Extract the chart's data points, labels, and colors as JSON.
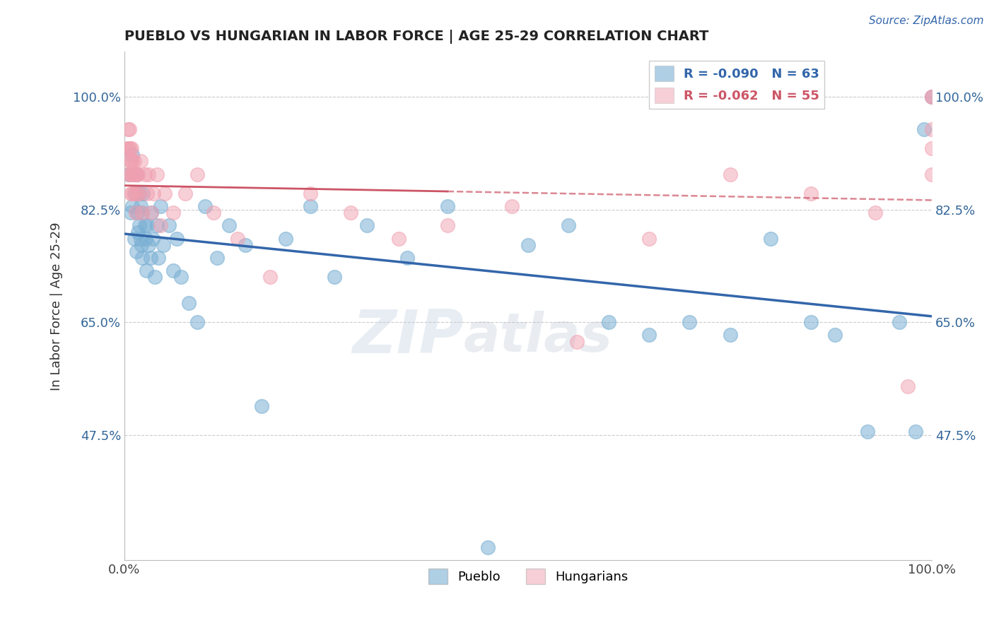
{
  "title": "PUEBLO VS HUNGARIAN IN LABOR FORCE | AGE 25-29 CORRELATION CHART",
  "source_text": "Source: ZipAtlas.com",
  "ylabel": "In Labor Force | Age 25-29",
  "xlim": [
    0.0,
    1.0
  ],
  "ylim": [
    0.28,
    1.07
  ],
  "yticks": [
    0.475,
    0.65,
    0.825,
    1.0
  ],
  "ytick_labels": [
    "47.5%",
    "65.0%",
    "82.5%",
    "100.0%"
  ],
  "xtick_labels": [
    "0.0%",
    "100.0%"
  ],
  "xticks": [
    0.0,
    1.0
  ],
  "blue_R": -0.09,
  "blue_N": 63,
  "pink_R": -0.062,
  "pink_N": 55,
  "blue_color": "#7ab0d4",
  "pink_color": "#f0a0b0",
  "blue_line_color": "#3366aa",
  "pink_line_color": "#cc5566",
  "watermark_zip": "ZIP",
  "watermark_atlas": "atlas",
  "pueblo_x": [
    0.005,
    0.008,
    0.01,
    0.01,
    0.012,
    0.013,
    0.015,
    0.015,
    0.016,
    0.017,
    0.018,
    0.018,
    0.02,
    0.02,
    0.021,
    0.022,
    0.022,
    0.023,
    0.025,
    0.026,
    0.027,
    0.028,
    0.03,
    0.032,
    0.033,
    0.035,
    0.038,
    0.04,
    0.042,
    0.045,
    0.048,
    0.055,
    0.06,
    0.065,
    0.07,
    0.08,
    0.09,
    0.1,
    0.115,
    0.13,
    0.15,
    0.17,
    0.2,
    0.23,
    0.26,
    0.3,
    0.35,
    0.4,
    0.45,
    0.5,
    0.55,
    0.6,
    0.65,
    0.7,
    0.75,
    0.8,
    0.85,
    0.88,
    0.92,
    0.96,
    0.98,
    0.99,
    1.0
  ],
  "pueblo_y": [
    0.88,
    0.82,
    0.91,
    0.83,
    0.78,
    0.85,
    0.76,
    0.88,
    0.82,
    0.79,
    0.85,
    0.8,
    0.78,
    0.83,
    0.77,
    0.82,
    0.75,
    0.85,
    0.8,
    0.78,
    0.73,
    0.8,
    0.77,
    0.75,
    0.82,
    0.78,
    0.72,
    0.8,
    0.75,
    0.83,
    0.77,
    0.8,
    0.73,
    0.78,
    0.72,
    0.68,
    0.65,
    0.83,
    0.75,
    0.8,
    0.77,
    0.52,
    0.78,
    0.83,
    0.72,
    0.8,
    0.75,
    0.83,
    0.3,
    0.77,
    0.8,
    0.65,
    0.63,
    0.65,
    0.63,
    0.78,
    0.65,
    0.63,
    0.48,
    0.65,
    0.48,
    0.95,
    1.0
  ],
  "hungarian_x": [
    0.003,
    0.004,
    0.005,
    0.005,
    0.006,
    0.006,
    0.007,
    0.007,
    0.008,
    0.008,
    0.009,
    0.009,
    0.01,
    0.01,
    0.011,
    0.012,
    0.012,
    0.013,
    0.014,
    0.015,
    0.016,
    0.017,
    0.018,
    0.02,
    0.022,
    0.025,
    0.028,
    0.03,
    0.033,
    0.036,
    0.04,
    0.045,
    0.05,
    0.06,
    0.075,
    0.09,
    0.11,
    0.14,
    0.18,
    0.23,
    0.28,
    0.34,
    0.4,
    0.48,
    0.56,
    0.65,
    0.75,
    0.85,
    0.93,
    0.97,
    1.0,
    1.0,
    1.0,
    1.0,
    1.0
  ],
  "hungarian_y": [
    0.92,
    0.95,
    0.88,
    0.92,
    0.9,
    0.95,
    0.88,
    0.92,
    0.85,
    0.9,
    0.88,
    0.92,
    0.85,
    0.9,
    0.88,
    0.85,
    0.9,
    0.88,
    0.82,
    0.88,
    0.85,
    0.88,
    0.85,
    0.9,
    0.82,
    0.88,
    0.85,
    0.88,
    0.82,
    0.85,
    0.88,
    0.8,
    0.85,
    0.82,
    0.85,
    0.88,
    0.82,
    0.78,
    0.72,
    0.85,
    0.82,
    0.78,
    0.8,
    0.83,
    0.62,
    0.78,
    0.88,
    0.85,
    0.82,
    0.55,
    0.88,
    0.92,
    0.95,
    1.0,
    1.0
  ]
}
